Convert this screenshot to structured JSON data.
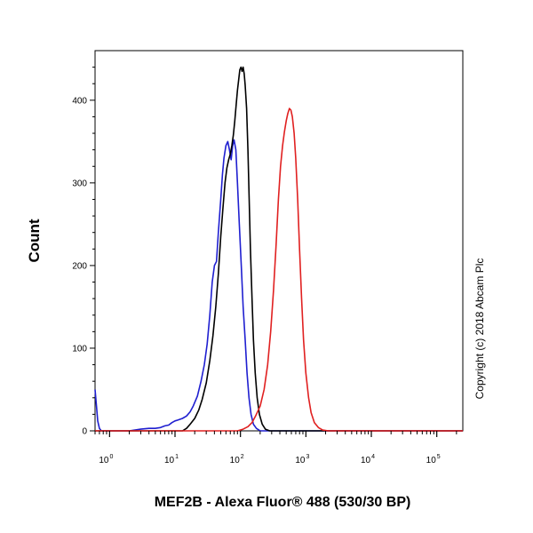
{
  "chart_data": {
    "type": "line",
    "title": "",
    "xlabel": "MEF2B - Alexa Fluor® 488 (530/30 BP)",
    "ylabel": "Count",
    "x_scale": "log",
    "xlim": [
      0.6,
      250000
    ],
    "ylim": [
      0,
      460
    ],
    "x_ticks": [
      {
        "value": 1,
        "base": "10",
        "exp": "0"
      },
      {
        "value": 10,
        "base": "10",
        "exp": "1"
      },
      {
        "value": 100,
        "base": "10",
        "exp": "2"
      },
      {
        "value": 1000,
        "base": "10",
        "exp": "3"
      },
      {
        "value": 10000,
        "base": "10",
        "exp": "4"
      },
      {
        "value": 100000,
        "base": "10",
        "exp": "5"
      }
    ],
    "y_ticks": [
      {
        "value": 0,
        "label": "0"
      },
      {
        "value": 100,
        "label": "100"
      },
      {
        "value": 200,
        "label": "200"
      },
      {
        "value": 300,
        "label": "300"
      },
      {
        "value": 400,
        "label": "400"
      }
    ],
    "grid": false,
    "legend": "none",
    "annotation": "Copyright (c) 2018 Abcam Plc",
    "series": [
      {
        "color": "#1f1fd0",
        "points": [
          [
            0.6,
            50
          ],
          [
            0.63,
            30
          ],
          [
            0.66,
            12
          ],
          [
            0.7,
            3
          ],
          [
            0.75,
            0
          ],
          [
            2,
            0
          ],
          [
            3,
            2
          ],
          [
            4,
            3
          ],
          [
            5,
            3
          ],
          [
            6,
            4
          ],
          [
            7,
            6
          ],
          [
            8,
            7
          ],
          [
            9,
            10
          ],
          [
            10,
            12
          ],
          [
            11,
            13
          ],
          [
            13,
            15
          ],
          [
            15,
            18
          ],
          [
            17,
            23
          ],
          [
            19,
            30
          ],
          [
            22,
            42
          ],
          [
            25,
            60
          ],
          [
            28,
            80
          ],
          [
            31,
            105
          ],
          [
            34,
            140
          ],
          [
            37,
            180
          ],
          [
            40,
            200
          ],
          [
            43,
            205
          ],
          [
            46,
            240
          ],
          [
            50,
            280
          ],
          [
            53,
            310
          ],
          [
            56,
            330
          ],
          [
            60,
            345
          ],
          [
            64,
            350
          ],
          [
            68,
            340
          ],
          [
            72,
            328
          ],
          [
            76,
            345
          ],
          [
            80,
            352
          ],
          [
            85,
            340
          ],
          [
            90,
            300
          ],
          [
            96,
            250
          ],
          [
            103,
            200
          ],
          [
            110,
            150
          ],
          [
            118,
            110
          ],
          [
            126,
            70
          ],
          [
            135,
            40
          ],
          [
            145,
            20
          ],
          [
            158,
            8
          ],
          [
            175,
            3
          ],
          [
            200,
            0
          ],
          [
            250000,
            0
          ]
        ]
      },
      {
        "color": "#000000",
        "points": [
          [
            0.6,
            0
          ],
          [
            13,
            0
          ],
          [
            15,
            3
          ],
          [
            17,
            8
          ],
          [
            20,
            15
          ],
          [
            23,
            25
          ],
          [
            26,
            38
          ],
          [
            30,
            58
          ],
          [
            34,
            85
          ],
          [
            38,
            115
          ],
          [
            42,
            150
          ],
          [
            46,
            190
          ],
          [
            50,
            235
          ],
          [
            54,
            270
          ],
          [
            58,
            300
          ],
          [
            62,
            318
          ],
          [
            66,
            328
          ],
          [
            70,
            335
          ],
          [
            74,
            345
          ],
          [
            78,
            358
          ],
          [
            82,
            375
          ],
          [
            86,
            395
          ],
          [
            90,
            412
          ],
          [
            94,
            425
          ],
          [
            98,
            437
          ],
          [
            102,
            440
          ],
          [
            106,
            435
          ],
          [
            110,
            440
          ],
          [
            114,
            432
          ],
          [
            118,
            418
          ],
          [
            124,
            390
          ],
          [
            130,
            340
          ],
          [
            136,
            280
          ],
          [
            142,
            220
          ],
          [
            150,
            160
          ],
          [
            158,
            110
          ],
          [
            168,
            70
          ],
          [
            180,
            40
          ],
          [
            195,
            20
          ],
          [
            215,
            8
          ],
          [
            240,
            2
          ],
          [
            280,
            0
          ],
          [
            250000,
            0
          ]
        ]
      },
      {
        "color": "#e02020",
        "points": [
          [
            0.6,
            0
          ],
          [
            90,
            0
          ],
          [
            110,
            2
          ],
          [
            130,
            5
          ],
          [
            150,
            10
          ],
          [
            170,
            18
          ],
          [
            200,
            30
          ],
          [
            230,
            50
          ],
          [
            260,
            80
          ],
          [
            290,
            120
          ],
          [
            320,
            170
          ],
          [
            350,
            225
          ],
          [
            380,
            280
          ],
          [
            410,
            320
          ],
          [
            440,
            345
          ],
          [
            470,
            362
          ],
          [
            500,
            375
          ],
          [
            530,
            384
          ],
          [
            560,
            390
          ],
          [
            590,
            388
          ],
          [
            620,
            380
          ],
          [
            660,
            360
          ],
          [
            700,
            330
          ],
          [
            750,
            280
          ],
          [
            800,
            220
          ],
          [
            860,
            160
          ],
          [
            920,
            110
          ],
          [
            1000,
            70
          ],
          [
            1100,
            40
          ],
          [
            1200,
            22
          ],
          [
            1350,
            10
          ],
          [
            1550,
            4
          ],
          [
            1800,
            1
          ],
          [
            2200,
            0
          ],
          [
            250000,
            0
          ]
        ]
      }
    ]
  }
}
